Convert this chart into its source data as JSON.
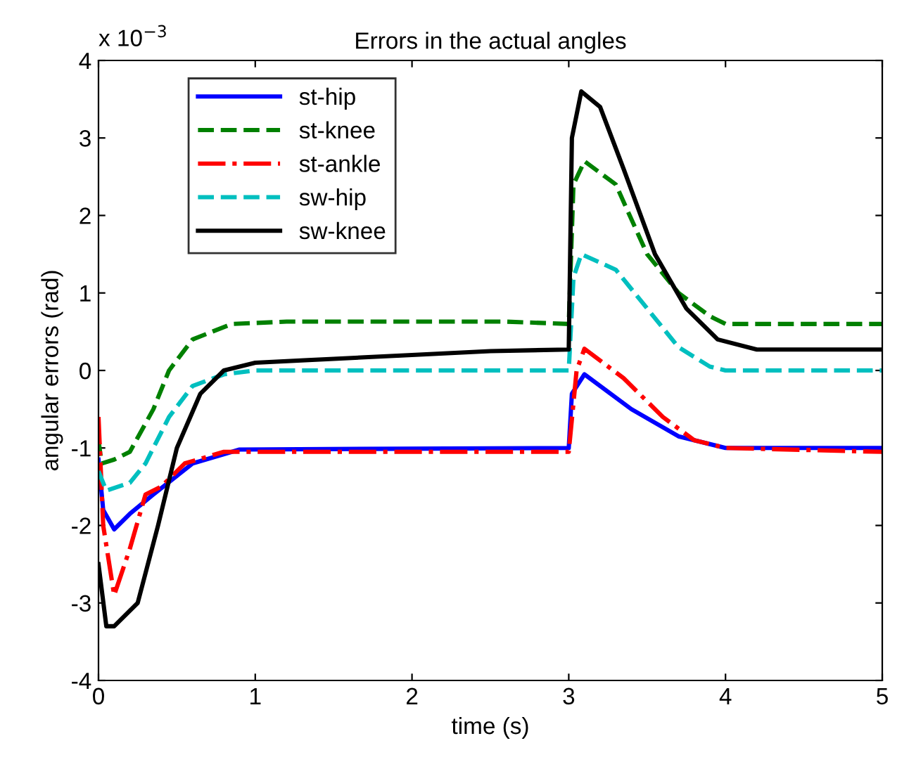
{
  "chart_data": {
    "type": "line",
    "title": "Errors in the actual angles",
    "xlabel": "time (s)",
    "ylabel": "angular errors (rad)",
    "annotations": [
      "x 10$^{−3}$"
    ],
    "xlim": [
      0,
      5
    ],
    "xticks": [
      0,
      1,
      2,
      3,
      4,
      5
    ],
    "ylim": [
      -4,
      4
    ],
    "yticks": [
      -4,
      -3,
      -2,
      -1,
      0,
      1,
      2,
      3,
      4
    ],
    "grid": false,
    "legend": "top left",
    "series": [
      {
        "name": "st-hip",
        "color": "#0000ff",
        "line_style": "solid",
        "x": [
          0,
          0.03,
          0.1,
          0.2,
          0.35,
          0.6,
          0.9,
          3.0,
          3.02,
          3.1,
          3.4,
          3.7,
          4.0,
          5
        ],
        "values": [
          -1.15,
          -1.8,
          -2.05,
          -1.85,
          -1.6,
          -1.2,
          -1.02,
          -1.0,
          -0.3,
          -0.05,
          -0.5,
          -0.85,
          -1.0,
          -1.0
        ]
      },
      {
        "name": "st-knee",
        "color": "#008000",
        "line_style": "dashed",
        "x": [
          0,
          0.02,
          0.1,
          0.2,
          0.35,
          0.45,
          0.6,
          0.85,
          1.2,
          2.6,
          3.0,
          3.03,
          3.1,
          3.3,
          3.5,
          3.7,
          3.9,
          4.0,
          5
        ],
        "values": [
          -0.9,
          -1.2,
          -1.15,
          -1.05,
          -0.5,
          0,
          0.4,
          0.6,
          0.63,
          0.63,
          0.6,
          2.4,
          2.7,
          2.4,
          1.5,
          1.0,
          0.7,
          0.6,
          0.6
        ]
      },
      {
        "name": "st-ankle",
        "color": "#ff0000",
        "line_style": "dashdot",
        "x": [
          0,
          0.03,
          0.1,
          0.2,
          0.3,
          0.4,
          0.55,
          0.8,
          3.0,
          3.05,
          3.1,
          3.35,
          3.6,
          3.8,
          4.0,
          5
        ],
        "values": [
          -0.6,
          -2.0,
          -2.9,
          -2.3,
          -1.6,
          -1.5,
          -1.2,
          -1.05,
          -1.05,
          0,
          0.28,
          -0.1,
          -0.6,
          -0.9,
          -1.0,
          -1.05
        ]
      },
      {
        "name": "sw-hip",
        "color": "#00bfbf",
        "line_style": "dashed",
        "x": [
          0,
          0.05,
          0.2,
          0.3,
          0.45,
          0.6,
          0.8,
          1.0,
          3.0,
          3.03,
          3.08,
          3.3,
          3.5,
          3.7,
          3.9,
          4.0,
          5
        ],
        "values": [
          -1.3,
          -1.55,
          -1.45,
          -1.2,
          -0.6,
          -0.2,
          -0.05,
          0,
          0,
          1.2,
          1.5,
          1.3,
          0.8,
          0.3,
          0.05,
          0,
          0
        ]
      },
      {
        "name": "sw-knee",
        "color": "#000000",
        "line_style": "solid",
        "x": [
          0,
          0.05,
          0.1,
          0.25,
          0.38,
          0.5,
          0.65,
          0.8,
          1.0,
          1.5,
          2.0,
          2.5,
          3.0,
          3.02,
          3.08,
          3.2,
          3.35,
          3.55,
          3.75,
          3.95,
          4.2,
          5
        ],
        "values": [
          -2.5,
          -3.3,
          -3.3,
          -3.0,
          -2.0,
          -1.0,
          -0.3,
          0,
          0.1,
          0.15,
          0.2,
          0.25,
          0.27,
          3.0,
          3.6,
          3.4,
          2.6,
          1.5,
          0.8,
          0.4,
          0.27,
          0.27
        ]
      }
    ]
  }
}
